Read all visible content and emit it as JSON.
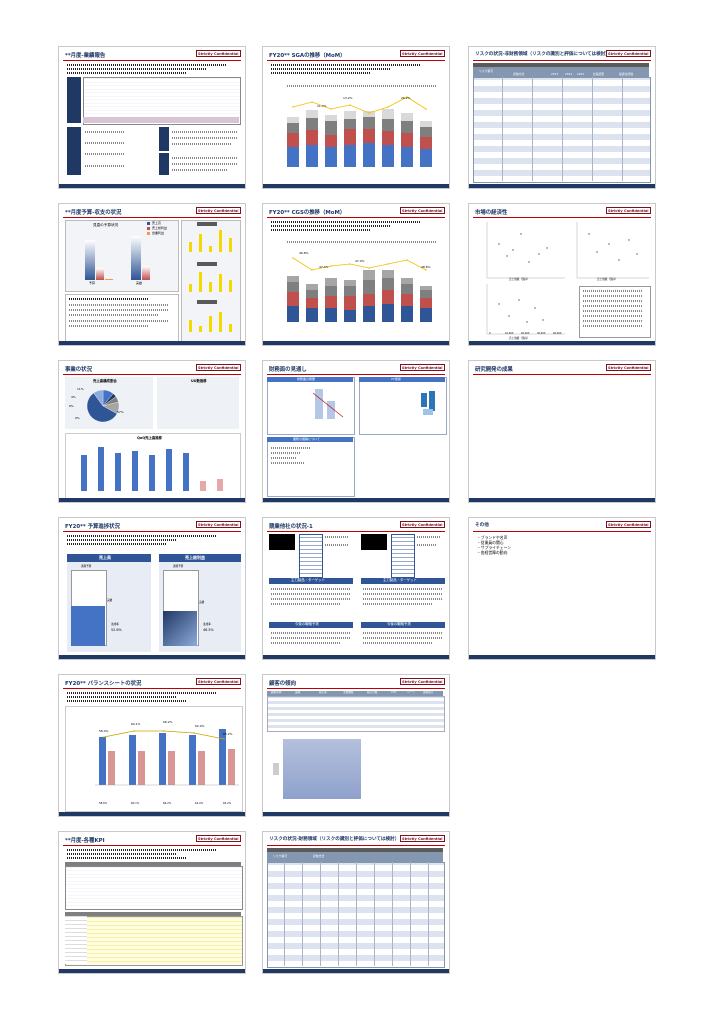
{
  "slides": {
    "s1": {
      "title": "**月度-業績報告",
      "conf": "Strictly Confidential"
    },
    "s2": {
      "title": "FY20** SGAの推移（MoM）",
      "conf": "Strictly Confidential",
      "labels": [
        "11.7%",
        "13.2%",
        "12.1%",
        "15.5%",
        "18.4%",
        "12.7%",
        "26.2%",
        "11.1%"
      ]
    },
    "s3": {
      "title": "リスクの状況-非財務領域（リスクの識別と評価については検討）",
      "conf": "Strictly Confidential",
      "col_a": "リスク番号",
      "col_b": "評価方法",
      "col_c": "2013",
      "col_d": "2014",
      "col_e": "2015",
      "col_f": "比較結果",
      "col_g": "最適化評価"
    },
    "s4": {
      "title": "**月度予算-収支の状況",
      "conf": "Strictly Confidential",
      "chart_title": "見直の予算状況",
      "legend": [
        "売上高",
        "売上総利益",
        "営業利益"
      ],
      "cats": [
        "予算",
        "実績"
      ]
    },
    "s5": {
      "title": "FY20** CGSの推移（MoM）",
      "conf": "Strictly Confidential",
      "labels": [
        "46.8%",
        "47.4%",
        "46.8%",
        "47.0%",
        "47.2%",
        "49.2%",
        "48.1%",
        "48.6%"
      ]
    },
    "s6": {
      "title": "市場の経済性",
      "conf": "Strictly Confidential",
      "xlabel": "売上規模（億円）",
      "ticks": [
        "0",
        "10,000",
        "20,000",
        "30,000",
        "40,000",
        "50,000"
      ]
    },
    "s7": {
      "title": "事業の状況",
      "conf": "Strictly Confidential",
      "pie_title": "売上高構成割合",
      "pie_labels": [
        "11%",
        "4%",
        "6%",
        "0%",
        "57%",
        "12%"
      ],
      "area_title": "UU数推移",
      "bar_title": "QoQ売上高推移"
    },
    "s8": {
      "title": "財務面の見通し",
      "conf": "Strictly Confidential",
      "box1": "財務面の概要",
      "box2": "CF関係",
      "box3": "業務の展開について"
    },
    "s9": {
      "title": "研究開発の成果",
      "conf": "Strictly Confidential"
    },
    "s10": {
      "title": "FY20** 予算進捗状況",
      "conf": "Strictly Confidential",
      "left_head": "売上高",
      "right_head": "売上総利益",
      "budget": "通期予算",
      "actual": "実績",
      "left_pct": "52.6%",
      "right_pct": "46.5%",
      "rate": "達成率"
    },
    "s11": {
      "title": "競業他社の状況-1",
      "conf": "Strictly Confidential",
      "band_a": "主力製品・ターゲット",
      "band_b": "主力製品・ターゲット",
      "band_c": "今後の戦略予測",
      "band_d": "今後の戦略予測"
    },
    "s12": {
      "title": "その他",
      "conf": "Strictly Confidential",
      "bullets": [
        "ブランドや名声",
        "従業員の関心",
        "サプライチェーン",
        "各経営陣の動向"
      ]
    },
    "s13": {
      "title": "FY20** バランスシートの状況",
      "conf": "Strictly Confidential",
      "labels": [
        "58.4%",
        "60.1%",
        "66.2%",
        "62.0%",
        "65.2%"
      ],
      "bottom_labels": [
        "58.6%",
        "60.1%",
        "66.2%",
        "62.0%",
        "65.2%"
      ]
    },
    "s14": {
      "title": "顧客の傾向",
      "conf": "Strictly Confidential",
      "heads": [
        "顧客名称",
        "業種",
        "取引先",
        "主要機器",
        "取引月数",
        "CUT",
        "シート",
        "最終取引"
      ]
    },
    "s15": {
      "title": "**月度-各種KPI",
      "conf": "Strictly Confidential"
    },
    "s16": {
      "title": "リスクの状況-財務領域（リスクの識別と評価については検討）",
      "conf": "Strictly Confidential",
      "col_a": "リスク番号",
      "col_b": "評価方法"
    }
  },
  "footer": {
    "left": "Strictly Confidential",
    "mid": "Copyright",
    "right": "All Rights Reserved"
  },
  "colors": {
    "navy": "#1f3864",
    "blue": "#4472c4",
    "red": "#c0504d",
    "gray": "#7f7f7f",
    "yellow": "#f5d800",
    "accent": "#c00000"
  }
}
